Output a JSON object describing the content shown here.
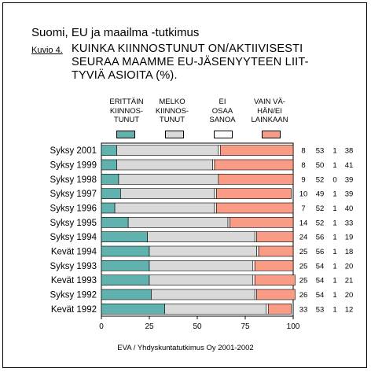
{
  "header": {
    "title": "Suomi, EU ja maailma -tutkimus"
  },
  "figure": {
    "label": "Kuvio 4.",
    "title_lines": [
      "KUINKA KIINNOSTUNUT ON/AKTIIVISESTI",
      "SEURAA MAAMME EU-JÄSENYYTEEN LIIT-",
      "TYVIÄ ASIOITA (%)."
    ]
  },
  "footer": {
    "source": "EVA / Yhdyskuntatutkimus Oy 2001-2002"
  },
  "colors": {
    "erittain": "#5fb2ad",
    "melko": "#d9d9d9",
    "ei_osaa": "#ffffff",
    "vain_vahan": "#fa9b86"
  },
  "chart_data": {
    "type": "bar",
    "orientation": "horizontal",
    "stacked": true,
    "xlim": [
      0,
      100
    ],
    "xticks": [
      "0",
      "25",
      "50",
      "75",
      "100"
    ],
    "categories": [
      "Syksy 2001",
      "Syksy 1999",
      "Syksy 1998",
      "Syksy 1997",
      "Syksy 1996",
      "Syksy 1995",
      "Syksy 1994",
      "Kevät 1994",
      "Syksy 1993",
      "Kevät 1993",
      "Syksy 1992",
      "Kevät 1992"
    ],
    "series": [
      {
        "name": "ERITTÄIN KIINNOS-TUNUT",
        "legend_lines": [
          "ERITTÄIN",
          "KIINNOS-",
          "TUNUT"
        ],
        "color": "#5fb2ad",
        "values": [
          8,
          8,
          9,
          10,
          7,
          14,
          24,
          25,
          25,
          25,
          26,
          33
        ]
      },
      {
        "name": "MELKO KIINNOS-TUNUT",
        "legend_lines": [
          "MELKO",
          "KIINNOS-",
          "TUNUT"
        ],
        "color": "#d9d9d9",
        "values": [
          53,
          50,
          52,
          49,
          52,
          52,
          56,
          56,
          54,
          54,
          54,
          53
        ]
      },
      {
        "name": "EI OSAA SANOA",
        "legend_lines": [
          "EI",
          "OSAA",
          "SANOA"
        ],
        "color": "#ffffff",
        "values": [
          1,
          1,
          0,
          1,
          1,
          1,
          1,
          1,
          1,
          1,
          1,
          1
        ]
      },
      {
        "name": "VAIN VÄ-HÄN/EI LAINKAAN",
        "legend_lines": [
          "VAIN VÄ-",
          "HÄN/EI",
          "LAINKAAN"
        ],
        "color": "#fa9b86",
        "values": [
          38,
          41,
          39,
          39,
          40,
          33,
          19,
          18,
          20,
          21,
          20,
          12
        ]
      }
    ],
    "grid": false,
    "legend": "top"
  }
}
